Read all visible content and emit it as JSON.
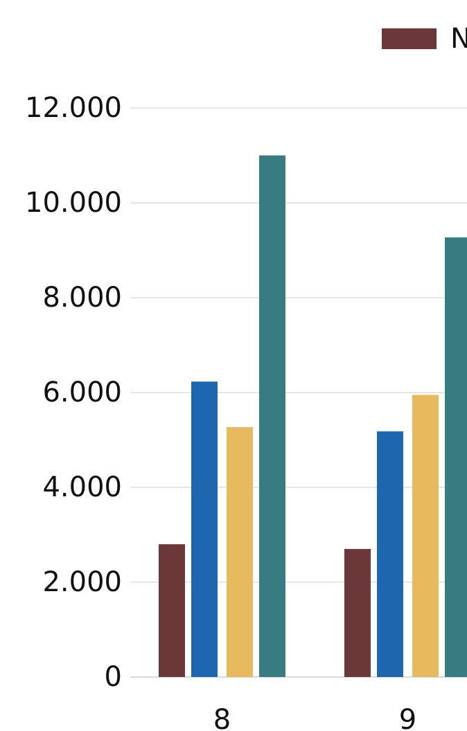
{
  "chart_data": {
    "type": "bar",
    "categories": [
      "8",
      "9"
    ],
    "series": [
      {
        "name": "N",
        "color": "#6b3738",
        "values": [
          2800,
          2700
        ]
      },
      {
        "color": "#1e66ad",
        "values": [
          6230,
          5180
        ]
      },
      {
        "color": "#e8b95e",
        "values": [
          5270,
          5950
        ]
      },
      {
        "color": "#387c82",
        "values": [
          11000,
          9270
        ]
      }
    ],
    "ylim": [
      0,
      12000
    ],
    "yticks": [
      0,
      2000,
      4000,
      6000,
      8000,
      10000,
      12000
    ],
    "ytick_labels": [
      "0",
      "2.000",
      "4.000",
      "6.000",
      "8.000",
      "10.000",
      "12.000"
    ],
    "grid": true,
    "legend_position": "top-right"
  }
}
